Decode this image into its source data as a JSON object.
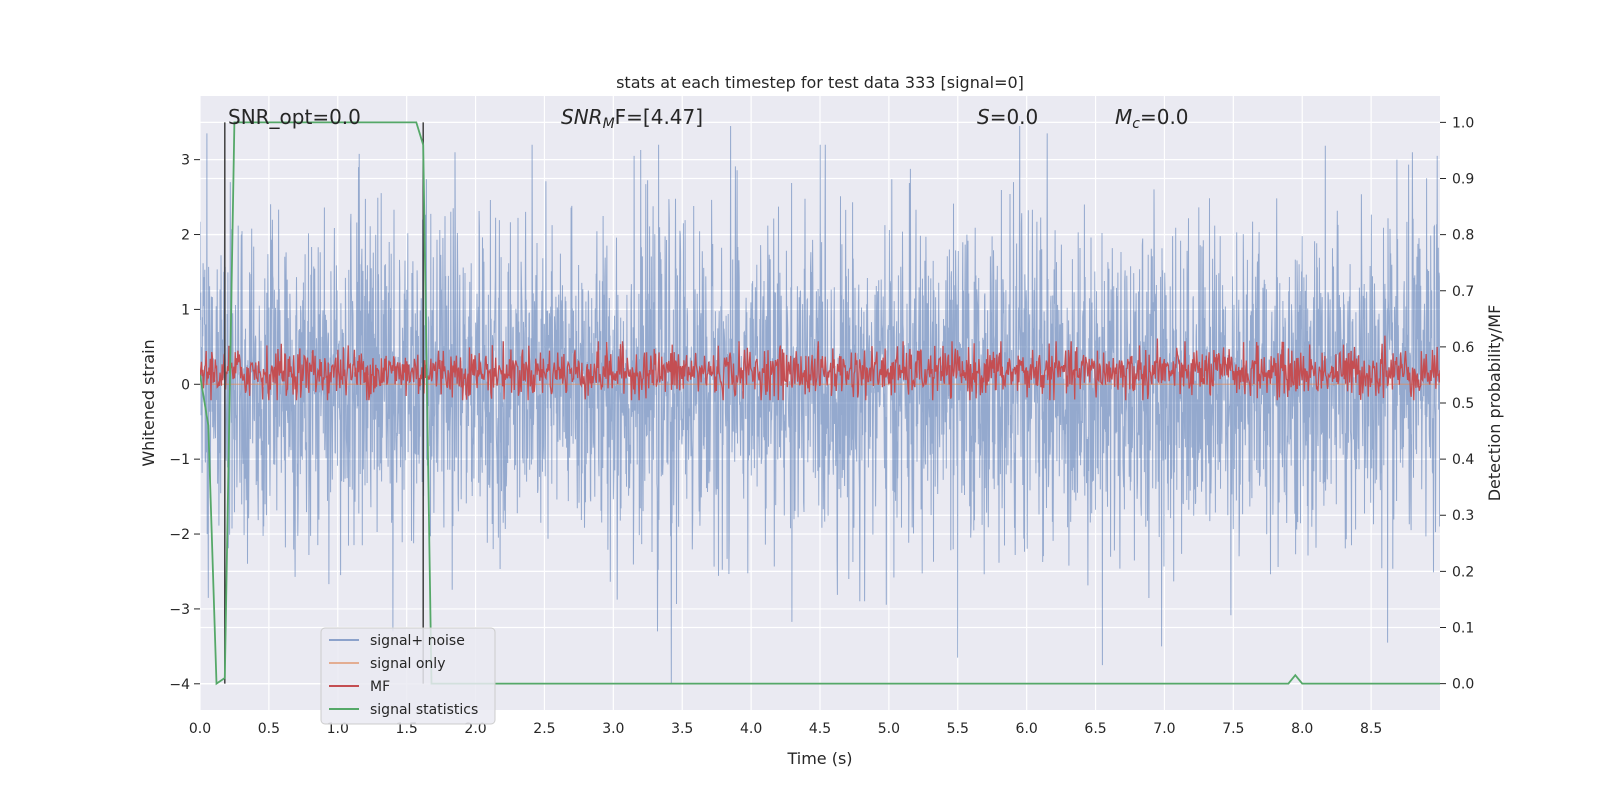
{
  "chart_data": {
    "type": "line",
    "title": "stats at each timestep for test data 333 [signal=0]",
    "xlabel": "Time (s)",
    "ylabel_left": "Whitened strain",
    "ylabel_right": "Detection probability/MF",
    "xlim": [
      0.0,
      9.0
    ],
    "ylim_left": [
      -4.35,
      3.85
    ],
    "ylim_right": [
      -0.047,
      1.047
    ],
    "xticks": [
      "0.0",
      "0.5",
      "1.0",
      "1.5",
      "2.0",
      "2.5",
      "3.0",
      "3.5",
      "4.0",
      "4.5",
      "5.0",
      "5.5",
      "6.0",
      "6.5",
      "7.0",
      "7.5",
      "8.0",
      "8.5"
    ],
    "xtick_values": [
      0.0,
      0.5,
      1.0,
      1.5,
      2.0,
      2.5,
      3.0,
      3.5,
      4.0,
      4.5,
      5.0,
      5.5,
      6.0,
      6.5,
      7.0,
      7.5,
      8.0,
      8.5
    ],
    "yticks_left": [
      "3",
      "2",
      "1",
      "0",
      "−1",
      "−2",
      "−3",
      "−4"
    ],
    "ytick_values_left": [
      3,
      2,
      1,
      0,
      -1,
      -2,
      -3,
      -4
    ],
    "yticks_right": [
      "1.0",
      "0.9",
      "0.8",
      "0.7",
      "0.6",
      "0.5",
      "0.4",
      "0.3",
      "0.2",
      "0.1",
      "0.0"
    ],
    "ytick_values_right": [
      1.0,
      0.9,
      0.8,
      0.7,
      0.6,
      0.5,
      0.4,
      0.3,
      0.2,
      0.1,
      0.0
    ],
    "grid": true,
    "legend_position": "lower-left",
    "annotations": {
      "snr_opt": "SNR_opt=0.0",
      "snr_mf_base": "SNR",
      "snr_mf_sub": "M",
      "snr_mf_rest": "F=[4.47]",
      "s_italic": "S",
      "s_rest": "=0.0",
      "mc_base": "M",
      "mc_sub": "c",
      "mc_rest": "=0.0"
    },
    "vertical_markers": [
      0.18,
      1.62
    ],
    "series": [
      {
        "name": "signal+ noise",
        "color": "#4c72b0",
        "axis": "left",
        "description": "whitened strain noise, roughly Gaussian with sigma ~1, peaks to about ±3.5",
        "x_range": [
          0.0,
          9.0
        ],
        "sigma": 1.0,
        "peaks": [
          [
            0.05,
            3.35
          ],
          [
            0.22,
            2.7
          ],
          [
            1.15,
            2.9
          ],
          [
            1.85,
            3.1
          ],
          [
            3.15,
            3.05
          ],
          [
            3.85,
            3.45
          ],
          [
            4.5,
            3.2
          ],
          [
            5.95,
            3.45
          ],
          [
            6.15,
            3.35
          ],
          [
            8.8,
            3.1
          ],
          [
            8.98,
            3.05
          ],
          [
            3.42,
            -4.0
          ],
          [
            3.32,
            -3.3
          ],
          [
            5.5,
            -3.65
          ],
          [
            6.55,
            -3.75
          ],
          [
            6.98,
            -3.5
          ],
          [
            8.62,
            -3.45
          ],
          [
            1.4,
            -3.3
          ]
        ]
      },
      {
        "name": "signal only",
        "color": "#dd8452",
        "axis": "left",
        "values_flat": 0.0
      },
      {
        "name": "MF",
        "color": "#c44e52",
        "axis": "right",
        "description": "matched-filter output fluctuating between about 0.5 and 0.6",
        "baseline": 0.555,
        "spread": 0.05,
        "peaks": [
          [
            6.95,
            0.615
          ],
          [
            8.6,
            0.62
          ],
          [
            8.98,
            0.6
          ]
        ]
      },
      {
        "name": "signal statistics",
        "color": "#55a868",
        "axis": "right",
        "x": [
          0.0,
          0.06,
          0.12,
          0.18,
          0.25,
          1.57,
          1.62,
          1.68,
          1.72,
          7.9,
          7.95,
          8.0,
          9.0
        ],
        "y": [
          0.55,
          0.46,
          0.0,
          0.01,
          1.0,
          1.0,
          0.96,
          0.0,
          0.0,
          0.0,
          0.015,
          0.0,
          0.0
        ]
      }
    ]
  }
}
